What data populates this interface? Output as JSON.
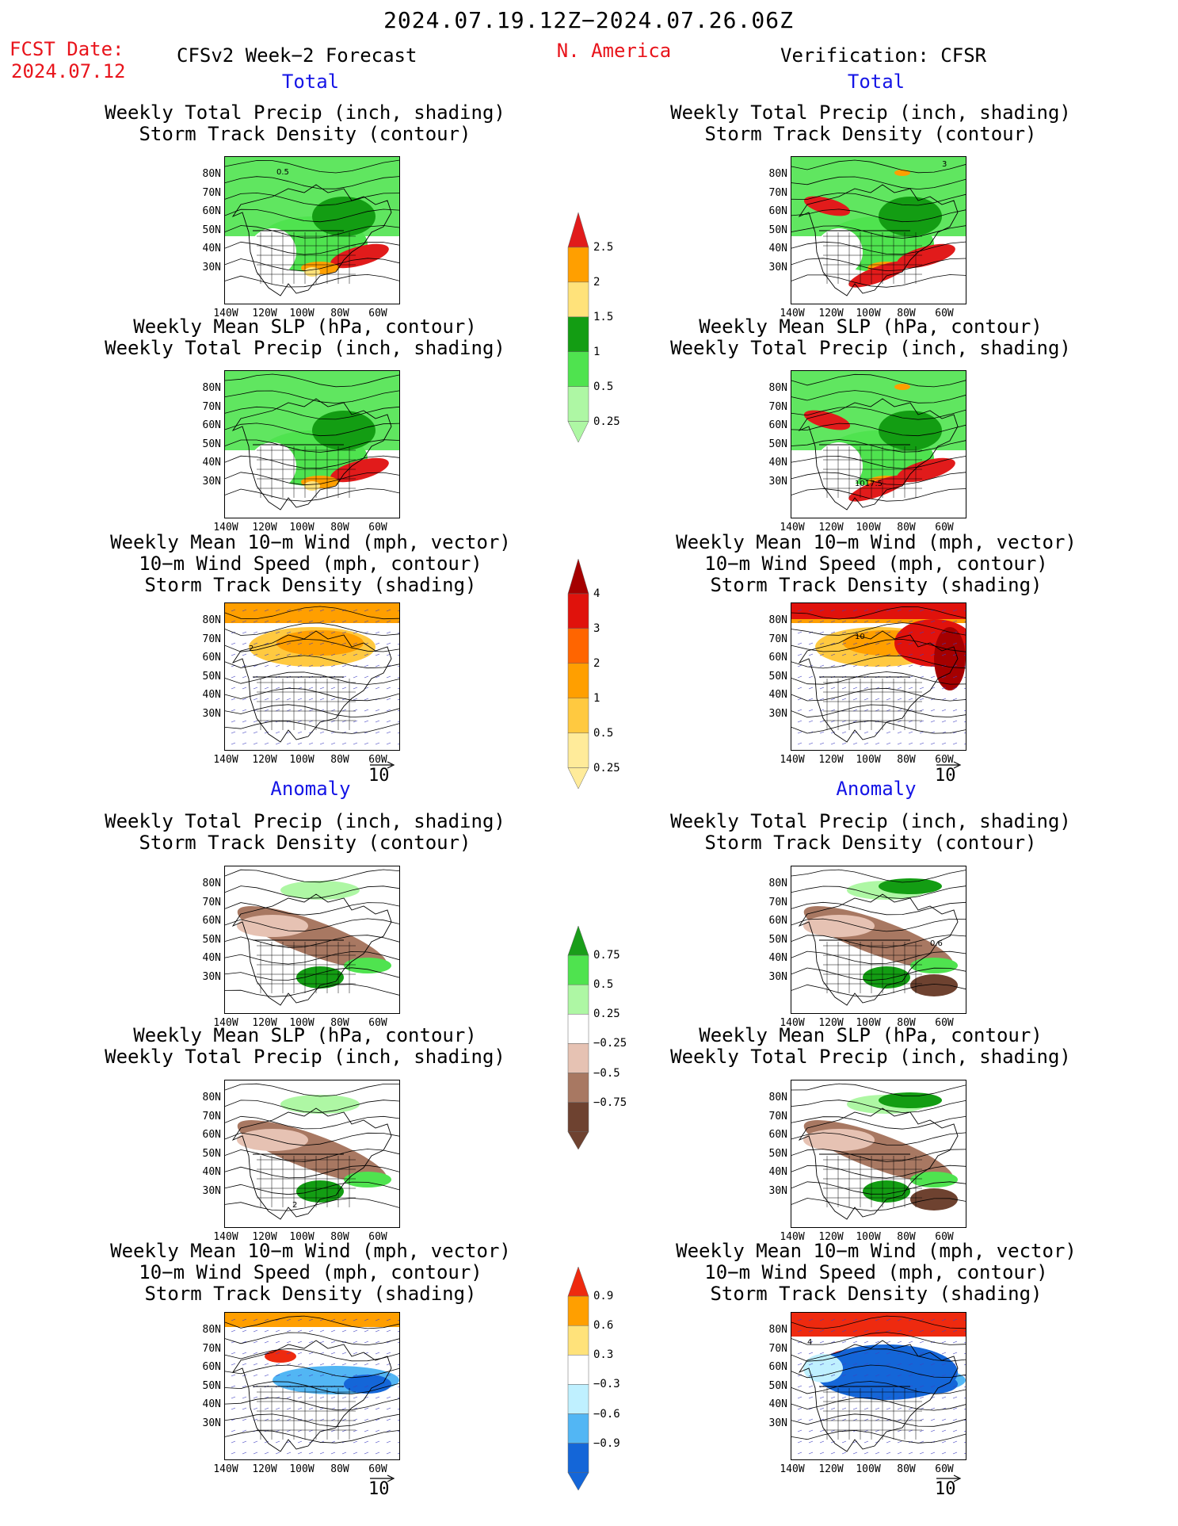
{
  "header": {
    "date_range": "2024.07.19.12Z−2024.07.26.06Z",
    "fcst_label": "FCST Date:",
    "fcst_date": "2024.07.12",
    "left_model": "CFSv2 Week−2 Forecast",
    "region": "N. America",
    "right_model": "Verification: CFSR"
  },
  "sections": {
    "total": "Total",
    "anomaly": "Anomaly"
  },
  "panel_titles": {
    "precip_storm": [
      "Weekly Total Precip (inch, shading)",
      "Storm Track Density (contour)"
    ],
    "slp_precip": [
      "Weekly Mean SLP (hPa, contour)",
      "Weekly Total Precip (inch, shading)"
    ],
    "wind_storm": [
      "Weekly Mean 10−m Wind (mph, vector)",
      "10−m Wind Speed (mph, contour)",
      "Storm Track Density (shading)"
    ]
  },
  "axes": {
    "lat_ticks": [
      "80N",
      "70N",
      "60N",
      "50N",
      "40N",
      "30N"
    ],
    "lon_ticks": [
      "140W",
      "120W",
      "100W",
      "80W",
      "60W"
    ]
  },
  "reference_vector": "10",
  "colorbars": {
    "precip_total": {
      "labels": [
        "2.5",
        "2",
        "1.5",
        "1",
        "0.5",
        "0.25"
      ],
      "colors": [
        "#e11b1b",
        "#ff9f00",
        "#ffe27a",
        "#139d13",
        "#4fe34f",
        "#aef7a4"
      ]
    },
    "storm_total": {
      "labels": [
        "4",
        "3",
        "2",
        "1",
        "0.5",
        "0.25"
      ],
      "colors": [
        "#a50000",
        "#e0120c",
        "#ff6500",
        "#ff9f00",
        "#ffc940",
        "#ffeb9a"
      ]
    },
    "precip_anom": {
      "labels": [
        "0.75",
        "0.5",
        "0.25",
        "−0.25",
        "−0.5",
        "−0.75"
      ],
      "colors": [
        "#1a9d1a",
        "#4fe34f",
        "#aef7a4",
        "#ffffff",
        "#e6c2b3",
        "#a87862",
        "#6e4230"
      ]
    },
    "storm_anom": {
      "labels": [
        "0.9",
        "0.6",
        "0.3",
        "−0.3",
        "−0.6",
        "−0.9"
      ],
      "colors": [
        "#ee2a0f",
        "#ff9f00",
        "#ffe27a",
        "#ffffff",
        "#bff0ff",
        "#52b6f4",
        "#1466d8"
      ]
    }
  },
  "map_annotations": {
    "fcst_precip_total": "0.5",
    "cfsr_precip_total": "3",
    "cfsr_slp_total": "1017.5",
    "fcst_wind_total": "2",
    "cfsr_wind_total": "10",
    "fcst_slp_anom": "2",
    "cfsr_precip_anom": "0.6",
    "cfsr_wind_anom": "4"
  }
}
